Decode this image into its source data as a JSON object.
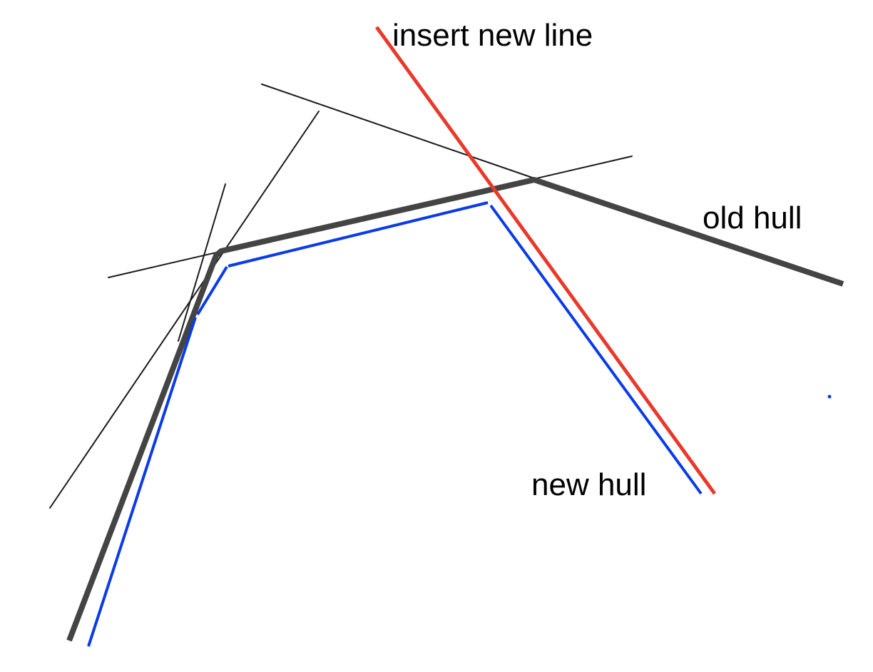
{
  "labels": {
    "insert_new_line": "insert new line",
    "old_hull": "old hull",
    "new_hull": "new hull"
  },
  "colors": {
    "background": "#ffffff",
    "old_hull": "#444444",
    "construction_lines": "#1a1a1a",
    "new_hull": "#0a3be8",
    "inserted_line": "#e8392a",
    "text": "#000000"
  }
}
